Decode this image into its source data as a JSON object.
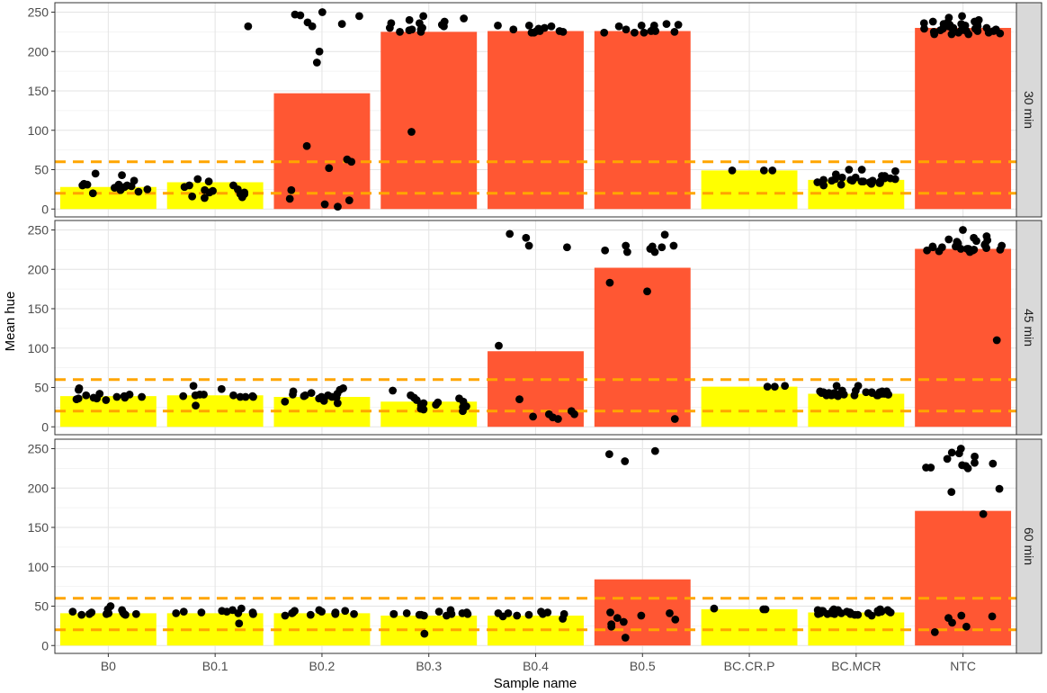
{
  "chart_data": {
    "type": "bar",
    "xlabel": "Sample name",
    "ylabel": "Mean hue",
    "ylim": [
      -10,
      262
    ],
    "yticks": [
      0,
      50,
      100,
      150,
      200,
      250
    ],
    "reference_lines": [
      20,
      60
    ],
    "categories": [
      "B0",
      "B0.1",
      "B0.2",
      "B0.3",
      "B0.4",
      "B0.5",
      "BC.CR.P",
      "BC.MCR",
      "NTC"
    ],
    "colors": {
      "low": "#FFFF00",
      "high": "#FF5733",
      "reference": "#FFA500",
      "point": "#000000",
      "strip": "#D9D9D9"
    },
    "panels": [
      {
        "label": "30 min",
        "bars": [
          {
            "value": 28,
            "level": "low"
          },
          {
            "value": 34,
            "level": "low"
          },
          {
            "value": 147,
            "level": "high"
          },
          {
            "value": 225,
            "level": "high"
          },
          {
            "value": 226,
            "level": "high"
          },
          {
            "value": 226,
            "level": "high"
          },
          {
            "value": 49,
            "level": "low"
          },
          {
            "value": 37,
            "level": "low"
          },
          {
            "value": 230,
            "level": "high"
          }
        ],
        "points": [
          [
            24,
            20,
            31,
            25,
            27,
            43,
            30,
            22,
            28,
            36,
            30,
            45,
            29,
            32,
            27,
            31
          ],
          [
            16,
            25,
            21,
            15,
            28,
            23,
            30,
            14,
            38,
            24,
            232,
            19,
            35,
            21,
            19,
            30
          ],
          [
            247,
            237,
            232,
            250,
            245,
            200,
            235,
            246,
            186,
            60,
            63,
            80,
            6,
            11,
            3,
            24,
            52,
            13
          ],
          [
            232,
            225,
            238,
            240,
            236,
            228,
            230,
            242,
            245,
            236,
            227,
            225,
            234,
            230,
            228,
            98
          ],
          [
            233,
            228,
            226,
            224,
            229,
            225,
            230,
            232,
            233,
            226,
            224,
            226
          ],
          [
            226,
            228,
            233,
            234,
            232,
            224,
            225,
            226,
            224,
            229,
            233,
            224,
            235
          ],
          [
            49,
            49,
            49
          ],
          [
            38,
            40,
            36,
            35,
            34,
            42,
            50,
            32,
            37,
            39,
            30,
            44,
            36,
            33,
            31,
            41,
            38,
            35,
            50,
            37,
            34,
            40,
            36,
            42,
            33,
            48,
            35,
            39
          ],
          [
            237,
            236,
            235,
            233,
            238,
            232,
            230,
            245,
            229,
            228,
            236,
            225,
            222,
            227,
            231,
            224,
            243,
            226,
            222,
            230,
            229,
            234,
            238,
            226,
            223,
            240,
            228,
            224,
            230,
            232,
            227,
            235,
            222,
            226,
            231,
            229
          ]
        ]
      },
      {
        "label": "45 min",
        "bars": [
          {
            "value": 39,
            "level": "low"
          },
          {
            "value": 40,
            "level": "low"
          },
          {
            "value": 38,
            "level": "low"
          },
          {
            "value": 32,
            "level": "low"
          },
          {
            "value": 96,
            "level": "high"
          },
          {
            "value": 202,
            "level": "high"
          },
          {
            "value": 51,
            "level": "low"
          },
          {
            "value": 42,
            "level": "low"
          },
          {
            "value": 226,
            "level": "high"
          }
        ],
        "points": [
          [
            38,
            42,
            35,
            49,
            36,
            47,
            41,
            37,
            39,
            36,
            40,
            34,
            38,
            37
          ],
          [
            39,
            38,
            41,
            38,
            52,
            40,
            48,
            39,
            27,
            40,
            41,
            38
          ],
          [
            40,
            36,
            47,
            33,
            42,
            37,
            39,
            45,
            49,
            32,
            41,
            38,
            36,
            43,
            30,
            38,
            40
          ],
          [
            34,
            30,
            22,
            28,
            37,
            25,
            20,
            31,
            27,
            36,
            40,
            46,
            29,
            23,
            32,
            26
          ],
          [
            103,
            230,
            240,
            245,
            228,
            35,
            20,
            12,
            16,
            10,
            13,
            16
          ],
          [
            230,
            222,
            244,
            226,
            229,
            172,
            183,
            10,
            228,
            224,
            222,
            230
          ],
          [
            51,
            51,
            52
          ],
          [
            52,
            45,
            42,
            40,
            43,
            41,
            44,
            39,
            46,
            42,
            40,
            44,
            43,
            41,
            45,
            42,
            40,
            41,
            43,
            44,
            42,
            41,
            40,
            46,
            43,
            42,
            44,
            41,
            40,
            45,
            52
          ],
          [
            232,
            250,
            240,
            226,
            229,
            237,
            233,
            225,
            224,
            238,
            228,
            222,
            226,
            231,
            235,
            224,
            230,
            227,
            242,
            228,
            223,
            236,
            110,
            229,
            226,
            225
          ]
        ]
      },
      {
        "label": "60 min",
        "bars": [
          {
            "value": 41,
            "level": "low"
          },
          {
            "value": 41,
            "level": "low"
          },
          {
            "value": 41,
            "level": "low"
          },
          {
            "value": 38,
            "level": "low"
          },
          {
            "value": 38,
            "level": "low"
          },
          {
            "value": 84,
            "level": "high"
          },
          {
            "value": 46,
            "level": "low"
          },
          {
            "value": 42,
            "level": "low"
          },
          {
            "value": 171,
            "level": "high"
          }
        ],
        "points": [
          [
            45,
            40,
            42,
            50,
            41,
            40,
            39,
            42,
            40,
            43,
            39,
            40,
            46
          ],
          [
            42,
            41,
            43,
            40,
            28,
            44,
            42,
            41,
            45,
            47,
            40,
            43
          ],
          [
            40,
            42,
            44,
            39,
            41,
            43,
            40,
            45,
            38,
            42,
            41,
            44
          ],
          [
            40,
            39,
            15,
            40,
            41,
            38,
            43,
            42,
            40,
            45,
            39,
            41,
            38,
            40
          ],
          [
            41,
            34,
            39,
            40,
            42,
            38,
            41,
            37,
            40,
            43
          ],
          [
            247,
            243,
            234,
            30,
            42,
            35,
            24,
            10,
            41,
            27,
            38,
            33
          ],
          [
            47,
            46,
            46
          ],
          [
            42,
            45,
            40,
            44,
            38,
            43,
            41,
            46,
            39,
            42,
            44,
            40,
            45,
            41,
            43,
            42,
            40,
            44,
            41,
            45,
            43,
            39,
            42,
            46,
            41,
            44,
            40,
            43,
            42
          ],
          [
            195,
            199,
            237,
            226,
            245,
            240,
            229,
            244,
            250,
            232,
            228,
            226,
            225,
            231,
            167,
            37,
            29,
            38,
            17,
            24,
            35
          ]
        ]
      }
    ]
  }
}
